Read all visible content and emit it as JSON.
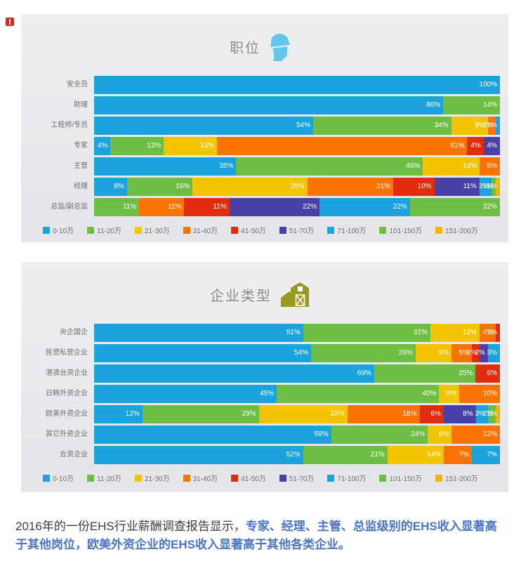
{
  "footer": {
    "prefix": "2016年的一份EHS行业薪酬调查报告显示，",
    "highlight": "专家、经理、主管、总监级别的EHS收入显著高于其他岗位，欧美外资企业的EHS收入显著高于其他各类企业。"
  },
  "icons": {
    "chart1": "hard-hat-worker-icon",
    "chart2": "barn-factory-icon",
    "chart1_color": "#63c5ee",
    "chart2_color": "#9a9a23"
  },
  "chart_data": [
    {
      "type": "bar",
      "orientation": "horizontal",
      "stacked": true,
      "title": "职位",
      "unit": "%",
      "value_labels": "inside-right, white",
      "legend_position": "bottom-center",
      "categories": [
        "安全员",
        "助理",
        "工程师/专员",
        "专家",
        "主管",
        "经理",
        "总监/副总监"
      ],
      "series": [
        {
          "name": "0-10万",
          "color": "#1aa3dc",
          "values": [
            100,
            86,
            54,
            4,
            35,
            8,
            0
          ]
        },
        {
          "name": "11-20万",
          "color": "#6fbe44",
          "values": [
            0,
            14,
            34,
            13,
            46,
            16,
            11
          ]
        },
        {
          "name": "21-30万",
          "color": "#f3c401",
          "values": [
            0,
            0,
            9,
            13,
            14,
            28,
            0
          ]
        },
        {
          "name": "31-40万",
          "color": "#fb7403",
          "values": [
            0,
            0,
            2,
            61,
            5,
            21,
            11
          ]
        },
        {
          "name": "41-50万",
          "color": "#df2d0e",
          "values": [
            0,
            0,
            0,
            4,
            0,
            10,
            11
          ]
        },
        {
          "name": "51-70万",
          "color": "#4842a8",
          "values": [
            0,
            0,
            0,
            4,
            0,
            11,
            22
          ]
        },
        {
          "name": "71-100万",
          "color": "#1aa3dc",
          "values": [
            0,
            0,
            1,
            0,
            0,
            3,
            22
          ]
        },
        {
          "name": "101-150万",
          "color": "#6fbe44",
          "values": [
            0,
            0,
            0,
            0,
            0,
            1,
            22
          ]
        },
        {
          "name": "151-200万",
          "color": "#efb700",
          "values": [
            0,
            0,
            0,
            0,
            0,
            1,
            0
          ]
        }
      ]
    },
    {
      "type": "bar",
      "orientation": "horizontal",
      "stacked": true,
      "title": "企业类型",
      "unit": "%",
      "value_labels": "inside-right, white",
      "legend_position": "bottom-center",
      "categories": [
        "央企国企",
        "民营私营企业",
        "港澳台资企业",
        "日韩外资企业",
        "欧美外资企业",
        "其它外资企业",
        "合资企业"
      ],
      "series": [
        {
          "name": "0-10万",
          "color": "#1aa3dc",
          "values": [
            51,
            54,
            69,
            45,
            12,
            59,
            52
          ]
        },
        {
          "name": "11-20万",
          "color": "#6fbe44",
          "values": [
            31,
            26,
            25,
            40,
            29,
            24,
            21
          ]
        },
        {
          "name": "21-30万",
          "color": "#f3c401",
          "values": [
            12,
            9,
            0,
            5,
            22,
            6,
            14
          ]
        },
        {
          "name": "31-40万",
          "color": "#fb7403",
          "values": [
            4,
            5,
            0,
            10,
            18,
            12,
            7
          ]
        },
        {
          "name": "41-50万",
          "color": "#df2d0e",
          "values": [
            1,
            2,
            6,
            0,
            6,
            0,
            0
          ]
        },
        {
          "name": "51-70万",
          "color": "#4842a8",
          "values": [
            0,
            2,
            0,
            0,
            8,
            0,
            0
          ]
        },
        {
          "name": "71-100万",
          "color": "#1aa3dc",
          "values": [
            0,
            3,
            0,
            0,
            3,
            0,
            7
          ]
        },
        {
          "name": "101-150万",
          "color": "#6fbe44",
          "values": [
            0,
            0,
            0,
            0,
            2,
            0,
            0
          ]
        },
        {
          "name": "151-200万",
          "color": "#efb700",
          "values": [
            0,
            0,
            0,
            0,
            1,
            0,
            0
          ]
        }
      ]
    }
  ]
}
